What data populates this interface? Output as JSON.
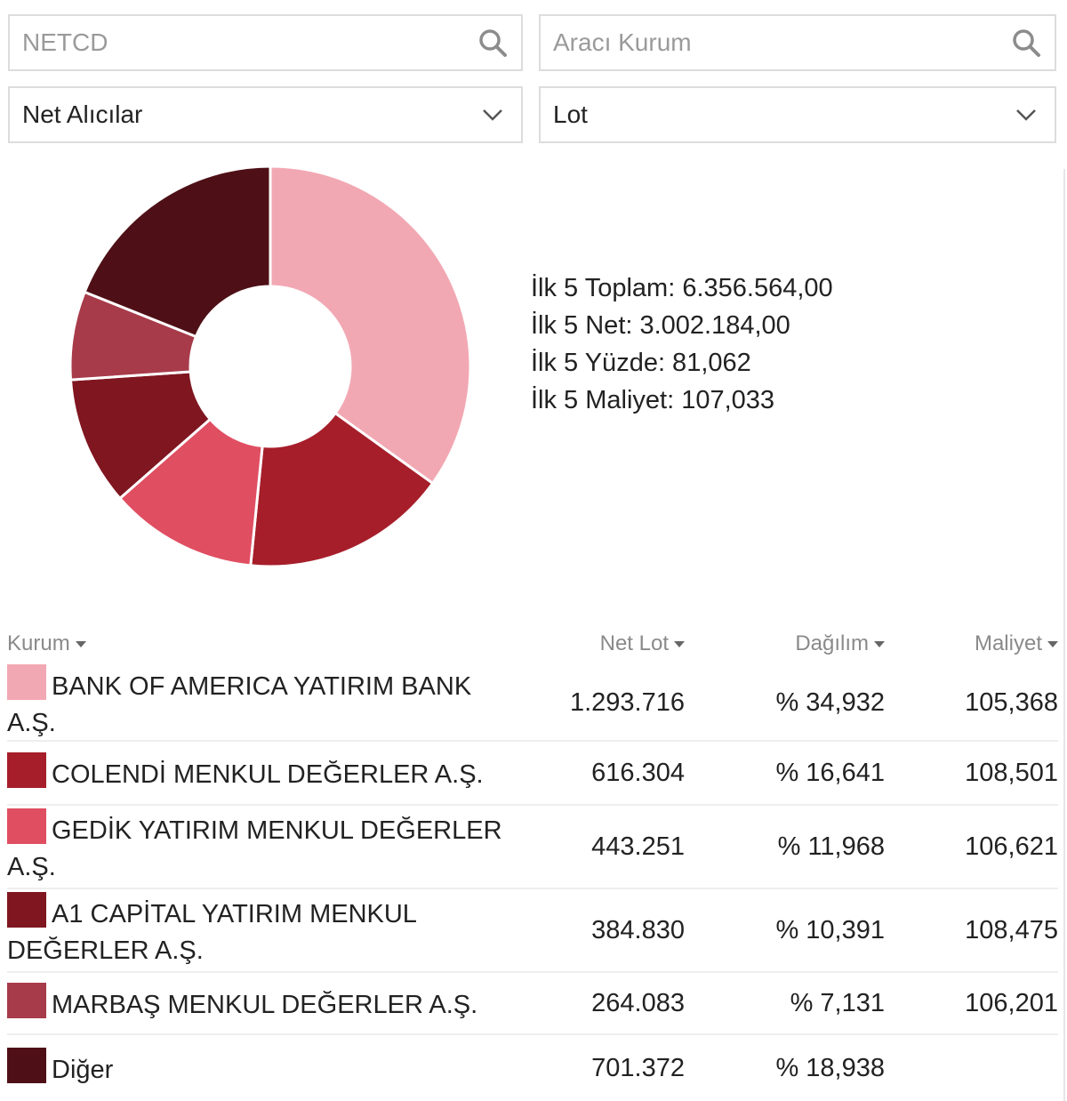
{
  "search": {
    "symbol_placeholder": "NETCD",
    "broker_placeholder": "Aracı Kurum"
  },
  "filters": {
    "side_selected": "Net Alıcılar",
    "unit_selected": "Lot"
  },
  "colors": {
    "bank_of_america": "#f2a8b3",
    "colendi": "#a61e2a",
    "gedik": "#e04e62",
    "a1_capital": "#7f1620",
    "marbas": "#a73b4a",
    "diger": "#4e1016"
  },
  "summary": {
    "total": "İlk 5 Toplam: 6.356.564,00",
    "net": "İlk 5 Net: 3.002.184,00",
    "percent": "İlk 5 Yüzde: 81,062",
    "cost": "İlk 5 Maliyet: 107,033"
  },
  "table": {
    "headers": {
      "kurum": "Kurum",
      "net_lot": "Net Lot",
      "dagilim": "Dağılım",
      "maliyet": "Maliyet"
    },
    "rows": [
      {
        "name": "BANK OF AMERICA YATIRIM BANK A.Ş.",
        "net_lot": "1.293.716",
        "dagilim": "% 34,932",
        "maliyet": "105,368",
        "color": "#f2a8b3"
      },
      {
        "name": "COLENDİ MENKUL DEĞERLER A.Ş.",
        "net_lot": "616.304",
        "dagilim": "% 16,641",
        "maliyet": "108,501",
        "color": "#a61e2a"
      },
      {
        "name": "GEDİK YATIRIM MENKUL DEĞERLER A.Ş.",
        "net_lot": "443.251",
        "dagilim": "% 11,968",
        "maliyet": "106,621",
        "color": "#e04e62"
      },
      {
        "name": "A1 CAPİTAL YATIRIM MENKUL DEĞERLER A.Ş.",
        "net_lot": "384.830",
        "dagilim": "% 10,391",
        "maliyet": "108,475",
        "color": "#7f1620"
      },
      {
        "name": "MARBAŞ MENKUL DEĞERLER A.Ş.",
        "net_lot": "264.083",
        "dagilim": "% 7,131",
        "maliyet": "106,201",
        "color": "#a73b4a"
      },
      {
        "name": "Diğer",
        "net_lot": "701.372",
        "dagilim": "% 18,938",
        "maliyet": "",
        "color": "#4e1016"
      }
    ]
  },
  "chart_data": {
    "type": "pie",
    "categories": [
      "BANK OF AMERICA YATIRIM BANK A.Ş.",
      "COLENDİ MENKUL DEĞERLER A.Ş.",
      "GEDİK YATIRIM MENKUL DEĞERLER A.Ş.",
      "A1 CAPİTAL YATIRIM MENKUL DEĞERLER A.Ş.",
      "MARBAŞ MENKUL DEĞERLER A.Ş.",
      "Diğer"
    ],
    "values": [
      34.932,
      16.641,
      11.968,
      10.391,
      7.131,
      18.938
    ],
    "colors": [
      "#f2a8b3",
      "#a61e2a",
      "#e04e62",
      "#7f1620",
      "#a73b4a",
      "#4e1016"
    ],
    "donut": true
  }
}
